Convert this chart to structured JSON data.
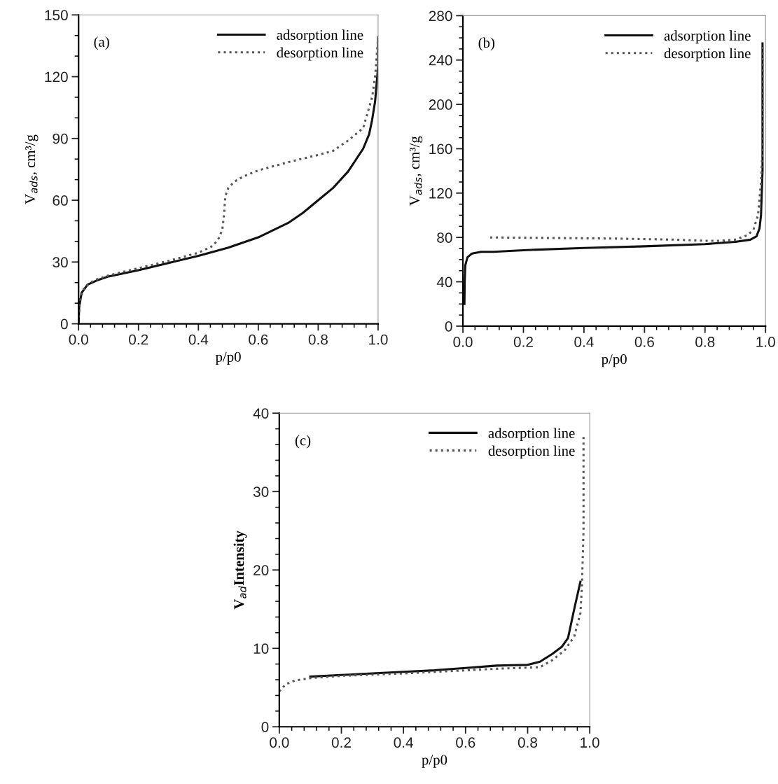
{
  "chart_data": [
    {
      "type": "line",
      "xlabel": "p/p0",
      "ylabel": "V$_{ads}$, cm³/g",
      "annotations": [
        "(a)"
      ],
      "legend": "top right",
      "grid": false,
      "marker": "none",
      "xlim": [
        0,
        1
      ],
      "ylim": [
        0,
        150
      ],
      "xticks": [
        {
          "value": 0,
          "label": "0.0"
        },
        {
          "value": 0.04,
          "label": null
        },
        {
          "value": 0.08,
          "label": null
        },
        {
          "value": 0.12,
          "label": null
        },
        {
          "value": 0.16,
          "label": null
        },
        {
          "value": 0.2,
          "label": "0.2"
        },
        {
          "value": 0.24,
          "label": null
        },
        {
          "value": 0.28,
          "label": null
        },
        {
          "value": 0.32,
          "label": null
        },
        {
          "value": 0.36,
          "label": null
        },
        {
          "value": 0.4,
          "label": "0.4"
        },
        {
          "value": 0.44,
          "label": null
        },
        {
          "value": 0.48,
          "label": null
        },
        {
          "value": 0.52,
          "label": null
        },
        {
          "value": 0.56,
          "label": null
        },
        {
          "value": 0.6,
          "label": "0.6"
        },
        {
          "value": 0.64,
          "label": null
        },
        {
          "value": 0.68,
          "label": null
        },
        {
          "value": 0.72,
          "label": null
        },
        {
          "value": 0.76,
          "label": null
        },
        {
          "value": 0.8,
          "label": "0.8"
        },
        {
          "value": 0.84,
          "label": null
        },
        {
          "value": 0.88,
          "label": null
        },
        {
          "value": 0.92,
          "label": null
        },
        {
          "value": 0.96,
          "label": null
        },
        {
          "value": 1,
          "label": "1.0"
        }
      ],
      "yticks": [
        0,
        {
          "value": 10,
          "label": null
        },
        {
          "value": 20,
          "label": null
        },
        30,
        {
          "value": 40,
          "label": null
        },
        {
          "value": 50,
          "label": null
        },
        60,
        {
          "value": 70,
          "label": null
        },
        {
          "value": 80,
          "label": null
        },
        90,
        {
          "value": 100,
          "label": null
        },
        {
          "value": 110,
          "label": null
        },
        120,
        {
          "value": 130,
          "label": null
        },
        {
          "value": 140,
          "label": null
        },
        150
      ],
      "series": [
        {
          "name": "adsorption line",
          "color": "#111111",
          "line_style": "solid",
          "x": [
            0,
            0.002,
            0.01,
            0.03,
            0.06,
            0.1,
            0.2,
            0.3,
            0.4,
            0.5,
            0.6,
            0.7,
            0.75,
            0.8,
            0.85,
            0.9,
            0.95,
            0.97,
            0.98,
            0.99,
            1.0,
            1.0
          ],
          "values": [
            0,
            8,
            15,
            19,
            21,
            23,
            26,
            29.5,
            33,
            37,
            42,
            49,
            54,
            60,
            66,
            74,
            85,
            92,
            99,
            108,
            125,
            139
          ]
        },
        {
          "name": "desorption line",
          "color": "#555555",
          "line_style": "dotted",
          "x": [
            0,
            0.005,
            0.02,
            0.05,
            0.1,
            0.2,
            0.3,
            0.4,
            0.45,
            0.47,
            0.48,
            0.485,
            0.49,
            0.5,
            0.52,
            0.55,
            0.6,
            0.7,
            0.8,
            0.85,
            0.9,
            0.95,
            0.98,
            0.99,
            1.0
          ],
          "values": [
            3,
            12,
            18,
            21,
            23.5,
            27,
            30.5,
            34.5,
            38,
            42,
            46,
            52,
            62,
            66,
            69,
            71.5,
            74.5,
            78.5,
            82,
            84,
            89,
            95,
            110,
            120,
            139
          ]
        }
      ]
    },
    {
      "type": "line",
      "xlabel": "p/p0",
      "ylabel": "V$_{ads}$, cm³/g",
      "annotations": [
        "(b)"
      ],
      "legend": "top right",
      "grid": false,
      "marker": "none",
      "xlim": [
        0,
        1
      ],
      "ylim": [
        0,
        280
      ],
      "xticks": [
        {
          "value": 0,
          "label": "0.0"
        },
        {
          "value": 0.04,
          "label": null
        },
        {
          "value": 0.08,
          "label": null
        },
        {
          "value": 0.12,
          "label": null
        },
        {
          "value": 0.16,
          "label": null
        },
        {
          "value": 0.2,
          "label": "0.2"
        },
        {
          "value": 0.24,
          "label": null
        },
        {
          "value": 0.28,
          "label": null
        },
        {
          "value": 0.32,
          "label": null
        },
        {
          "value": 0.36,
          "label": null
        },
        {
          "value": 0.4,
          "label": "0.4"
        },
        {
          "value": 0.44,
          "label": null
        },
        {
          "value": 0.48,
          "label": null
        },
        {
          "value": 0.52,
          "label": null
        },
        {
          "value": 0.56,
          "label": null
        },
        {
          "value": 0.6,
          "label": "0.6"
        },
        {
          "value": 0.64,
          "label": null
        },
        {
          "value": 0.68,
          "label": null
        },
        {
          "value": 0.72,
          "label": null
        },
        {
          "value": 0.76,
          "label": null
        },
        {
          "value": 0.8,
          "label": "0.8"
        },
        {
          "value": 0.84,
          "label": null
        },
        {
          "value": 0.88,
          "label": null
        },
        {
          "value": 0.92,
          "label": null
        },
        {
          "value": 0.96,
          "label": null
        },
        {
          "value": 1,
          "label": "1.0"
        }
      ],
      "yticks": [
        0,
        {
          "value": 10,
          "label": null
        },
        {
          "value": 20,
          "label": null
        },
        {
          "value": 30,
          "label": null
        },
        40,
        {
          "value": 50,
          "label": null
        },
        {
          "value": 60,
          "label": null
        },
        {
          "value": 70,
          "label": null
        },
        80,
        {
          "value": 90,
          "label": null
        },
        {
          "value": 100,
          "label": null
        },
        {
          "value": 110,
          "label": null
        },
        120,
        {
          "value": 130,
          "label": null
        },
        {
          "value": 140,
          "label": null
        },
        {
          "value": 150,
          "label": null
        },
        160,
        {
          "value": 170,
          "label": null
        },
        {
          "value": 180,
          "label": null
        },
        {
          "value": 190,
          "label": null
        },
        200,
        {
          "value": 210,
          "label": null
        },
        {
          "value": 220,
          "label": null
        },
        {
          "value": 230,
          "label": null
        },
        240,
        {
          "value": 250,
          "label": null
        },
        {
          "value": 260,
          "label": null
        },
        {
          "value": 270,
          "label": null
        },
        280
      ],
      "series": [
        {
          "name": "adsorption line",
          "color": "#111111",
          "line_style": "solid",
          "x": [
            0.005,
            0.006,
            0.008,
            0.015,
            0.03,
            0.06,
            0.1,
            0.2,
            0.4,
            0.6,
            0.8,
            0.9,
            0.95,
            0.97,
            0.98,
            0.985,
            0.99,
            0.99
          ],
          "values": [
            20,
            40,
            55,
            62,
            65.5,
            67,
            67,
            68.5,
            70.5,
            72,
            74,
            76,
            78,
            81,
            88,
            100,
            140,
            255
          ]
        },
        {
          "name": "desorption line",
          "color": "#555555",
          "line_style": "dotted",
          "x": [
            0.09,
            0.3,
            0.5,
            0.7,
            0.8,
            0.85,
            0.9,
            0.94,
            0.96,
            0.975,
            0.985,
            0.99,
            0.99
          ],
          "values": [
            80,
            79.5,
            79,
            78,
            77,
            77,
            78,
            82,
            87,
            100,
            130,
            160,
            255
          ]
        }
      ]
    },
    {
      "type": "line",
      "xlabel": "p/p0",
      "ylabel": "V$_{ad}$Intensity",
      "annotations": [
        "(c)"
      ],
      "legend": "top right",
      "grid": false,
      "marker": "none",
      "xlim": [
        0,
        1
      ],
      "ylim": [
        0,
        40
      ],
      "xticks": [
        {
          "value": 0,
          "label": "0.0"
        },
        {
          "value": 0.04,
          "label": null
        },
        {
          "value": 0.08,
          "label": null
        },
        {
          "value": 0.12,
          "label": null
        },
        {
          "value": 0.16,
          "label": null
        },
        {
          "value": 0.2,
          "label": "0.2"
        },
        {
          "value": 0.24,
          "label": null
        },
        {
          "value": 0.28,
          "label": null
        },
        {
          "value": 0.32,
          "label": null
        },
        {
          "value": 0.36,
          "label": null
        },
        {
          "value": 0.4,
          "label": "0.4"
        },
        {
          "value": 0.44,
          "label": null
        },
        {
          "value": 0.48,
          "label": null
        },
        {
          "value": 0.52,
          "label": null
        },
        {
          "value": 0.56,
          "label": null
        },
        {
          "value": 0.6,
          "label": "0.6"
        },
        {
          "value": 0.64,
          "label": null
        },
        {
          "value": 0.68,
          "label": null
        },
        {
          "value": 0.72,
          "label": null
        },
        {
          "value": 0.76,
          "label": null
        },
        {
          "value": 0.8,
          "label": "0.8"
        },
        {
          "value": 0.84,
          "label": null
        },
        {
          "value": 0.88,
          "label": null
        },
        {
          "value": 0.92,
          "label": null
        },
        {
          "value": 0.96,
          "label": null
        },
        {
          "value": 1,
          "label": "1.0"
        }
      ],
      "yticks": [
        0,
        {
          "value": 2,
          "label": null
        },
        {
          "value": 4,
          "label": null
        },
        {
          "value": 6,
          "label": null
        },
        {
          "value": 8,
          "label": null
        },
        10,
        {
          "value": 12,
          "label": null
        },
        {
          "value": 14,
          "label": null
        },
        {
          "value": 16,
          "label": null
        },
        {
          "value": 18,
          "label": null
        },
        20,
        {
          "value": 22,
          "label": null
        },
        {
          "value": 24,
          "label": null
        },
        {
          "value": 26,
          "label": null
        },
        {
          "value": 28,
          "label": null
        },
        30,
        {
          "value": 32,
          "label": null
        },
        {
          "value": 34,
          "label": null
        },
        {
          "value": 36,
          "label": null
        },
        {
          "value": 38,
          "label": null
        },
        40
      ],
      "series": [
        {
          "name": "adsorption line",
          "color": "#111111",
          "line_style": "solid",
          "x": [
            0.1,
            0.2,
            0.3,
            0.4,
            0.5,
            0.6,
            0.7,
            0.8,
            0.84,
            0.88,
            0.91,
            0.93,
            0.95,
            0.97
          ],
          "values": [
            6.4,
            6.6,
            6.8,
            7.0,
            7.2,
            7.5,
            7.8,
            7.9,
            8.3,
            9.3,
            10.2,
            11.3,
            15,
            18.5
          ]
        },
        {
          "name": "desorption line",
          "color": "#555555",
          "line_style": "dotted",
          "x": [
            0,
            0.02,
            0.05,
            0.1,
            0.2,
            0.4,
            0.6,
            0.7,
            0.84,
            0.88,
            0.92,
            0.95,
            0.97,
            0.975,
            0.98,
            0.98
          ],
          "values": [
            4.5,
            5.4,
            5.9,
            6.2,
            6.5,
            6.8,
            7.2,
            7.4,
            7.6,
            8.5,
            9.8,
            11.5,
            14.5,
            18,
            25,
            37
          ]
        }
      ]
    }
  ]
}
